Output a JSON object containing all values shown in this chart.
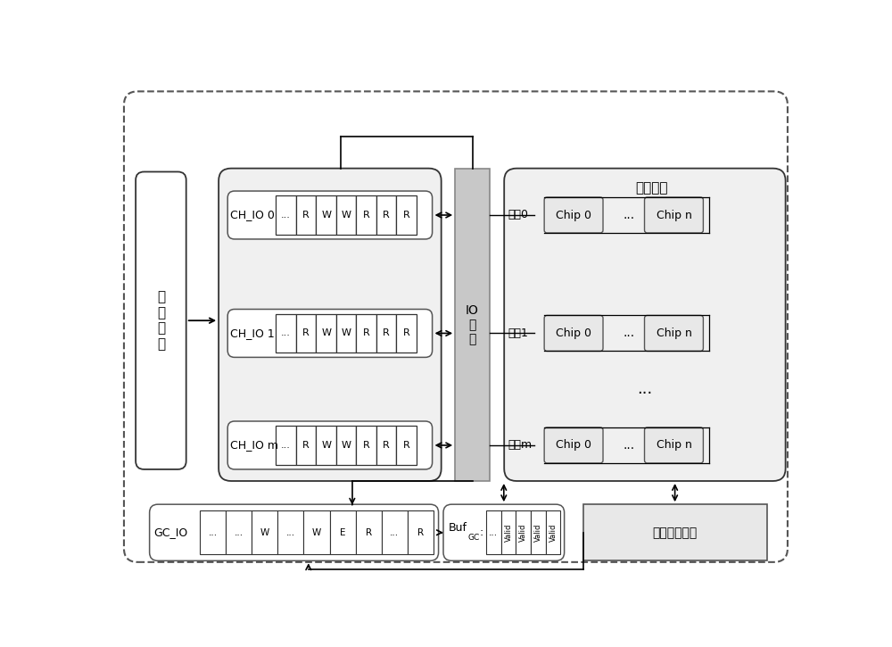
{
  "label_host": "主\n机\n队\n列",
  "label_io": "IO\n调\n度",
  "label_ch0": "CH_IO 0",
  "label_ch1": "CH_IO 1",
  "label_chm": "CH_IO m",
  "label_gcio": "GC_IO",
  "label_gc_policy": "垃圾回收决策",
  "label_ch0_cells": [
    "...",
    "R",
    "W",
    "W",
    "R",
    "R",
    "R"
  ],
  "label_ch1_cells": [
    "...",
    "R",
    "W",
    "W",
    "R",
    "R",
    "R"
  ],
  "label_chm_cells": [
    "...",
    "R",
    "W",
    "W",
    "R",
    "R",
    "R"
  ],
  "label_gcio_cells": [
    "...",
    "...",
    "W",
    "...",
    "W",
    "E",
    "R",
    "...",
    "R"
  ],
  "label_buf_cells": [
    "...",
    "Valid",
    "Valid",
    "Valid",
    "Valid"
  ],
  "label_channel0": "通道0",
  "label_channel1": "通道1",
  "label_channelm": "通道m",
  "title_flash": "底层闪存",
  "chip0": "Chip 0",
  "chipn": "Chip n",
  "dots": "..."
}
